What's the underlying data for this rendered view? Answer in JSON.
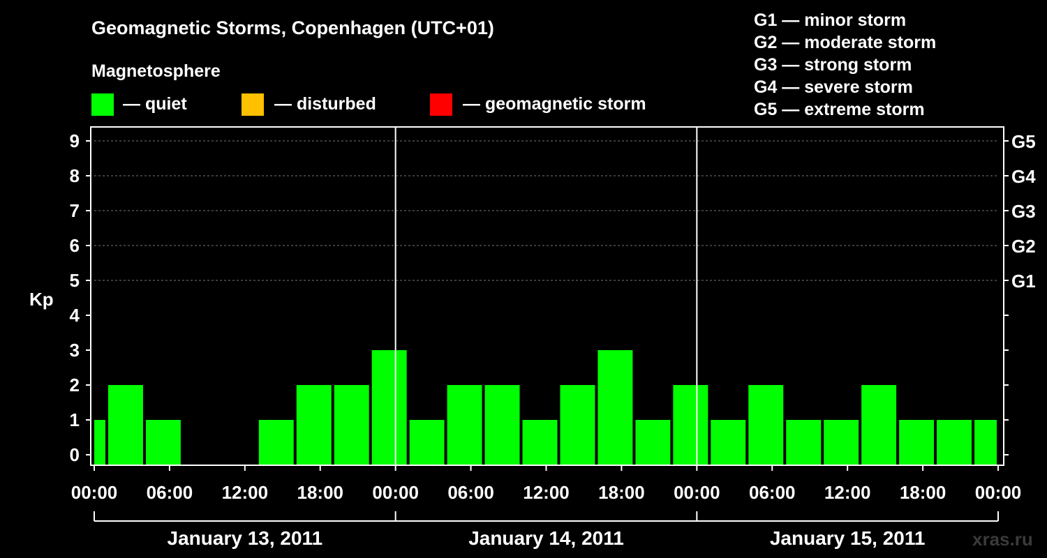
{
  "title": "Geomagnetic Storms, Copenhagen (UTC+01)",
  "legend": {
    "heading": "Magnetosphere",
    "items": [
      {
        "label": "— quiet",
        "color": "#00ff00"
      },
      {
        "label": "— disturbed",
        "color": "#ffc000"
      },
      {
        "label": "— geomagnetic storm",
        "color": "#ff0000"
      }
    ]
  },
  "scale": [
    "G1 — minor storm",
    "G2 — moderate storm",
    "G3 — strong storm",
    "G4 — severe storm",
    "G5 — extreme storm"
  ],
  "watermark": "xras.ru",
  "chart_data": {
    "type": "bar",
    "ylabel": "Kp",
    "ylim": [
      0,
      9
    ],
    "yticks": [
      "0",
      "1",
      "2",
      "3",
      "4",
      "5",
      "6",
      "7",
      "8",
      "9"
    ],
    "right_ticks": [
      {
        "kp": 5,
        "label": "G1"
      },
      {
        "kp": 6,
        "label": "G2"
      },
      {
        "kp": 7,
        "label": "G3"
      },
      {
        "kp": 8,
        "label": "G4"
      },
      {
        "kp": 9,
        "label": "G5"
      }
    ],
    "grid": true,
    "x_tick_labels": [
      "00:00",
      "06:00",
      "12:00",
      "18:00",
      "00:00",
      "06:00",
      "12:00",
      "18:00",
      "00:00",
      "06:00",
      "12:00",
      "18:00",
      "00:00"
    ],
    "days": [
      "January 13, 2011",
      "January 14, 2011",
      "January 15, 2011"
    ],
    "interval_hours": 3,
    "start_hour": -2,
    "values": [
      1,
      2,
      1,
      0,
      0,
      1,
      2,
      2,
      3,
      1,
      2,
      2,
      1,
      2,
      3,
      1,
      2,
      1,
      2,
      1,
      1,
      2,
      1,
      1,
      1
    ],
    "series": [
      {
        "values": [
          1,
          2,
          1,
          0,
          0,
          1,
          2,
          2,
          3,
          1,
          2,
          2,
          1,
          2,
          3,
          1,
          2,
          1,
          2,
          1,
          1,
          2,
          1,
          1,
          1
        ]
      }
    ]
  }
}
